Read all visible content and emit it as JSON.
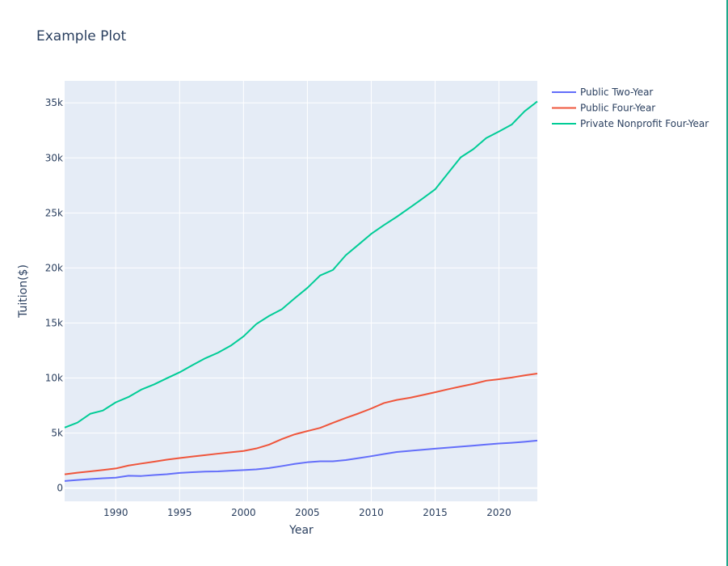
{
  "chart_data": {
    "type": "line",
    "title": "Example Plot",
    "xlabel": "Year",
    "ylabel": "Tuition($)",
    "xlim": [
      1986,
      2023
    ],
    "ylim": [
      -1200,
      37000
    ],
    "x_ticks": [
      1990,
      1995,
      2000,
      2005,
      2010,
      2015,
      2020
    ],
    "y_ticks": [
      {
        "value": 0,
        "label": "0"
      },
      {
        "value": 5000,
        "label": "5k"
      },
      {
        "value": 10000,
        "label": "10k"
      },
      {
        "value": 15000,
        "label": "15k"
      },
      {
        "value": 20000,
        "label": "20k"
      },
      {
        "value": 25000,
        "label": "25k"
      },
      {
        "value": 30000,
        "label": "30k"
      },
      {
        "value": 35000,
        "label": "35k"
      }
    ],
    "grid": true,
    "legend_position": "top-right-outside",
    "x": [
      1986,
      1987,
      1988,
      1989,
      1990,
      1991,
      1992,
      1993,
      1994,
      1995,
      1996,
      1997,
      1998,
      1999,
      2000,
      2001,
      2002,
      2003,
      2004,
      2005,
      2006,
      2007,
      2008,
      2009,
      2010,
      2011,
      2012,
      2013,
      2014,
      2015,
      2016,
      2017,
      2018,
      2019,
      2020,
      2021,
      2022,
      2023
    ],
    "series": [
      {
        "name": "Public Two-Year",
        "color": "#636efa",
        "values": [
          650,
          740,
          820,
          890,
          950,
          1120,
          1100,
          1190,
          1260,
          1380,
          1440,
          1500,
          1520,
          1580,
          1640,
          1700,
          1820,
          2000,
          2200,
          2350,
          2440,
          2440,
          2550,
          2720,
          2900,
          3100,
          3280,
          3380,
          3480,
          3580,
          3680,
          3770,
          3860,
          3960,
          4050,
          4120,
          4210,
          4320
        ]
      },
      {
        "name": "Public Four-Year",
        "color": "#ef553b",
        "values": [
          1250,
          1400,
          1520,
          1650,
          1780,
          2050,
          2230,
          2400,
          2580,
          2730,
          2870,
          3000,
          3130,
          3250,
          3370,
          3600,
          3950,
          4450,
          4880,
          5180,
          5470,
          5930,
          6370,
          6780,
          7230,
          7730,
          8010,
          8200,
          8450,
          8710,
          8980,
          9230,
          9470,
          9760,
          9890,
          10050,
          10240,
          10410
        ]
      },
      {
        "name": "Private Nonprofit Four-Year",
        "color": "#00cc96",
        "values": [
          5500,
          5950,
          6750,
          7050,
          7790,
          8280,
          8950,
          9420,
          9980,
          10520,
          11170,
          11790,
          12300,
          12940,
          13780,
          14900,
          15640,
          16250,
          17240,
          18190,
          19320,
          19820,
          21150,
          22120,
          23100,
          23900,
          24650,
          25460,
          26290,
          27140,
          28600,
          30050,
          30800,
          31800,
          32400,
          33030,
          34230,
          35130
        ]
      }
    ]
  }
}
